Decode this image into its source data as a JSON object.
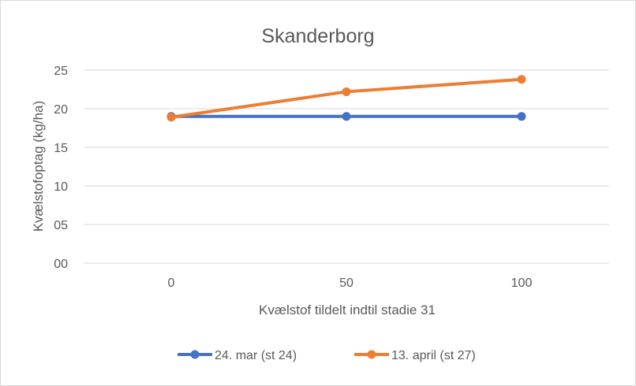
{
  "chart_data": {
    "type": "line",
    "title": "Skanderborg",
    "xlabel": "Kvælstof tildelt indtil stadie 31",
    "ylabel": "Kvælstofoptag (kg/ha)",
    "categories": [
      "0",
      "50",
      "100"
    ],
    "yticks": [
      "00",
      "05",
      "10",
      "15",
      "20",
      "25"
    ],
    "ylim": [
      0,
      25
    ],
    "grid": true,
    "legend": "bottom",
    "series": [
      {
        "name": "24. mar (st 24)",
        "values": [
          19.0,
          19.0,
          19.0
        ],
        "color": "#4472C4"
      },
      {
        "name": "13. april (st 27)",
        "values": [
          18.9,
          22.2,
          23.8
        ],
        "color": "#ED7D31"
      }
    ]
  }
}
